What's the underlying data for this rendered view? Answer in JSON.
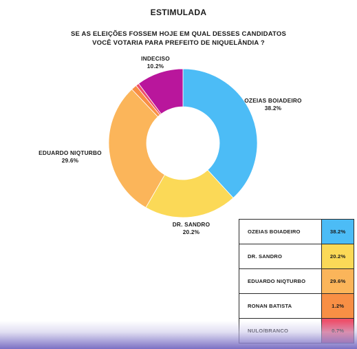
{
  "heading": "ESTIMULADA",
  "question_line1": "SE AS ELEIÇÕES FOSSEM HOJE EM QUAL DESSES CANDIDATOS",
  "question_line2": "VOCÊ VOTARIA PARA PREFEITO DE NIQUELÂNDIA ?",
  "chart_data": {
    "type": "pie",
    "donut": true,
    "title": "SE AS ELEIÇÕES FOSSEM HOJE EM QUAL DESSES CANDIDATOS VOCÊ VOTARIA PARA PREFEITO DE NIQUELÂNDIA ?",
    "slices": [
      {
        "label": "OZEIAS BOIADEIRO",
        "value": 38.2,
        "display": "38.2%",
        "color": "#4cbcf6"
      },
      {
        "label": "DR. SANDRO",
        "value": 20.2,
        "display": "20.2%",
        "color": "#fbd957"
      },
      {
        "label": "EDUARDO NIQTURBO",
        "value": 29.6,
        "display": "29.6%",
        "color": "#fbb55a"
      },
      {
        "label": "RONAN BATISTA",
        "value": 1.2,
        "display": "1.2%",
        "color": "#f88f45"
      },
      {
        "label": "NULO/BRANCO",
        "value": 0.7,
        "display": "0.7%",
        "color": "#ee4f6a"
      },
      {
        "label": "INDECISO",
        "value": 10.2,
        "display": "10.2%",
        "color": "#b9169c"
      }
    ]
  },
  "legend_rows": [
    {
      "label": "OZEIAS BOIADEIRO",
      "value": "38.2%",
      "color": "#4cbcf6"
    },
    {
      "label": "DR. SANDRO",
      "value": "20.2%",
      "color": "#fbd957"
    },
    {
      "label": "EDUARDO NIQTURBO",
      "value": "29.6%",
      "color": "#fbb55a"
    },
    {
      "label": "RONAN BATISTA",
      "value": "1.2%",
      "color": "#f88f45"
    },
    {
      "label": "NULO/BRANCO",
      "value": "0.7%",
      "color": "#ee4f6a"
    }
  ]
}
